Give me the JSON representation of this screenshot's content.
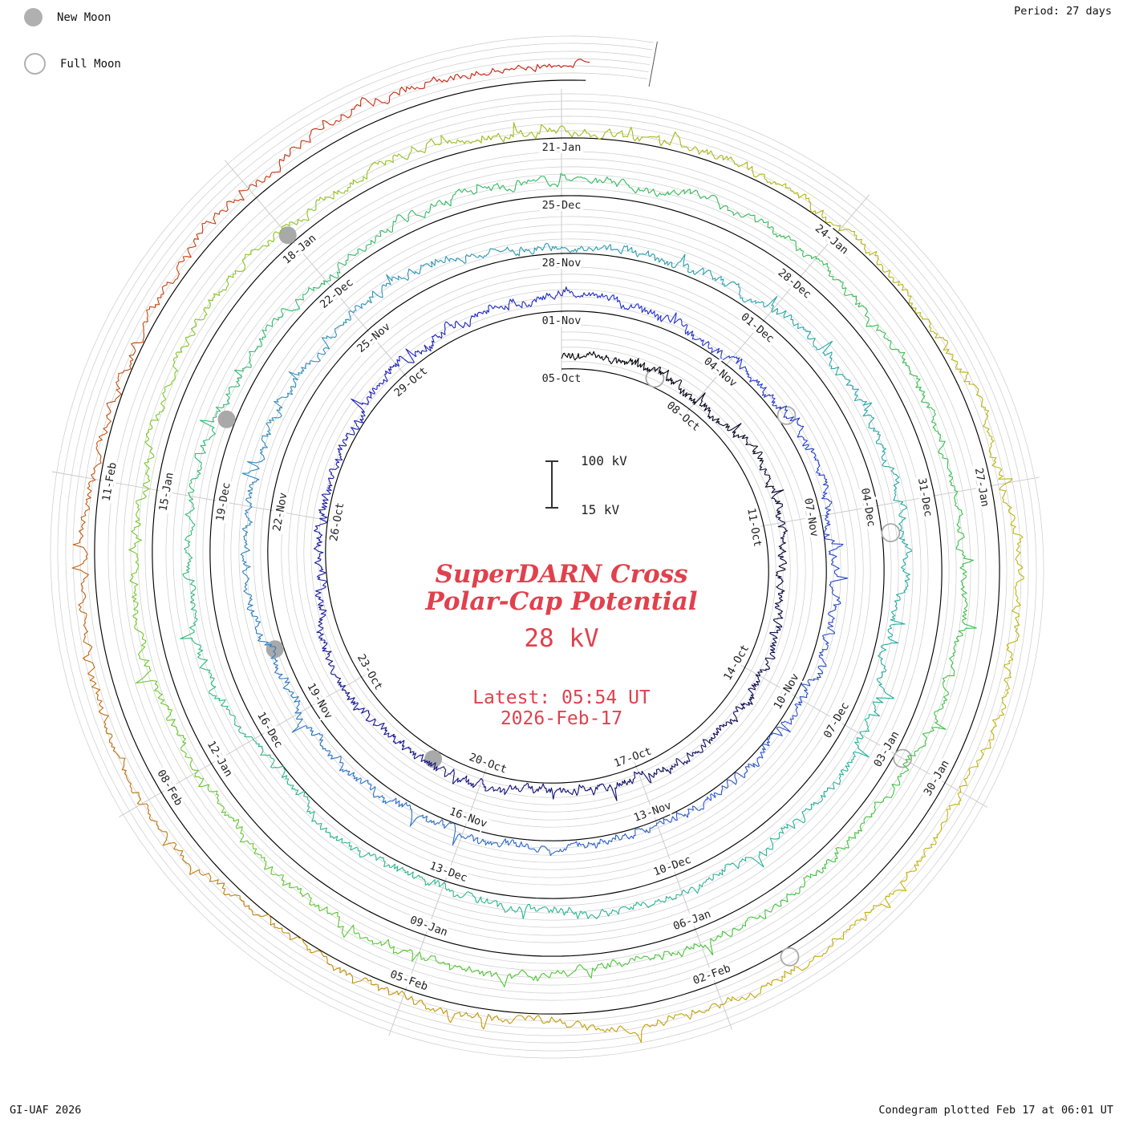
{
  "legend": {
    "new_moon": "New Moon",
    "full_moon": "Full Moon",
    "moon_color": "#b0b0b0"
  },
  "corner": {
    "period": "Period: 27 days",
    "credit": "GI-UAF 2026",
    "plotted": "Condegram plotted Feb 17 at 06:01 UT"
  },
  "center": {
    "title_line1": "SuperDARN Cross",
    "title_line2": "Polar-Cap Potential",
    "current_value": "28 kV",
    "latest_line1": "Latest: 05:54 UT",
    "latest_line2": "2026-Feb-17",
    "scale_top": "100 kV",
    "scale_bottom": "15 kV",
    "accent_color": "#e0414d"
  },
  "chart_data": {
    "type": "line",
    "subtype": "condegram-spiral",
    "title": "SuperDARN Cross Polar-Cap Potential",
    "period_days": 27,
    "tick_step_deg": 40,
    "tick_step_days": 3,
    "value_range_kv": [
      15,
      100
    ],
    "latest_value_kv": 28,
    "latest_time": "05:54 UT 2026-Feb-17",
    "start_date": "05-Oct",
    "end_date": "17-Feb",
    "total_turns": 5.009,
    "seed": 20260217,
    "moon_color": "#a9a9a9",
    "rings": [
      {
        "start": "05-Oct",
        "labels": [
          "05-Oct",
          "08-Oct",
          "11-Oct",
          "14-Oct",
          "17-Oct",
          "20-Oct",
          "23-Oct",
          "26-Oct",
          "29-Oct"
        ]
      },
      {
        "start": "01-Nov",
        "labels": [
          "01-Nov",
          "04-Nov",
          "07-Nov",
          "10-Nov",
          "13-Nov",
          "16-Nov",
          "19-Nov",
          "22-Nov",
          "25-Nov"
        ]
      },
      {
        "start": "28-Nov",
        "labels": [
          "28-Nov",
          "01-Dec",
          "04-Dec",
          "07-Dec",
          "10-Dec",
          "13-Dec",
          "16-Dec",
          "19-Dec",
          "22-Dec"
        ]
      },
      {
        "start": "25-Dec",
        "labels": [
          "25-Dec",
          "28-Dec",
          "31-Dec",
          "03-Jan",
          "06-Jan",
          "09-Jan",
          "12-Jan",
          "15-Jan",
          "18-Jan"
        ]
      },
      {
        "start": "21-Jan",
        "labels": [
          "21-Jan",
          "24-Jan",
          "27-Jan",
          "30-Jan",
          "02-Feb",
          "05-Feb",
          "08-Feb",
          "11-Feb"
        ]
      }
    ],
    "new_moons": [
      {
        "label": "21-Oct",
        "turn": 0,
        "az": 213
      },
      {
        "label": "20-Nov",
        "turn": 1,
        "az": 253
      },
      {
        "label": "20-Dec",
        "turn": 2,
        "az": 293
      },
      {
        "label": "18-Jan",
        "turn": 3,
        "az": 320
      }
    ],
    "full_moons": [
      {
        "label": "07-Oct",
        "turn": 0,
        "az": 27
      },
      {
        "label": "05-Nov",
        "turn": 1,
        "az": 57
      },
      {
        "label": "04-Dec",
        "turn": 2,
        "az": 85
      },
      {
        "label": "03-Jan",
        "turn": 3,
        "az": 120
      },
      {
        "label": "01-Feb",
        "turn": 4,
        "az": 150
      }
    ],
    "color_stops": [
      [
        "0.00",
        "#000000"
      ],
      [
        "0.07",
        "#0a0a52"
      ],
      [
        "0.14",
        "#16169c"
      ],
      [
        "0.21",
        "#2330cc"
      ],
      [
        "0.29",
        "#2b5ecb"
      ],
      [
        "0.37",
        "#2f8fbb"
      ],
      [
        "0.44",
        "#24aaa4"
      ],
      [
        "0.52",
        "#2cb989"
      ],
      [
        "0.60",
        "#33bb5e"
      ],
      [
        "0.68",
        "#3fc43a"
      ],
      [
        "0.76",
        "#7cc926"
      ],
      [
        "0.82",
        "#b5b513"
      ],
      [
        "0.87",
        "#c4b409"
      ],
      [
        "0.91",
        "#c49208"
      ],
      [
        "0.95",
        "#c05c10"
      ],
      [
        "1.00",
        "#cc1810"
      ]
    ]
  }
}
